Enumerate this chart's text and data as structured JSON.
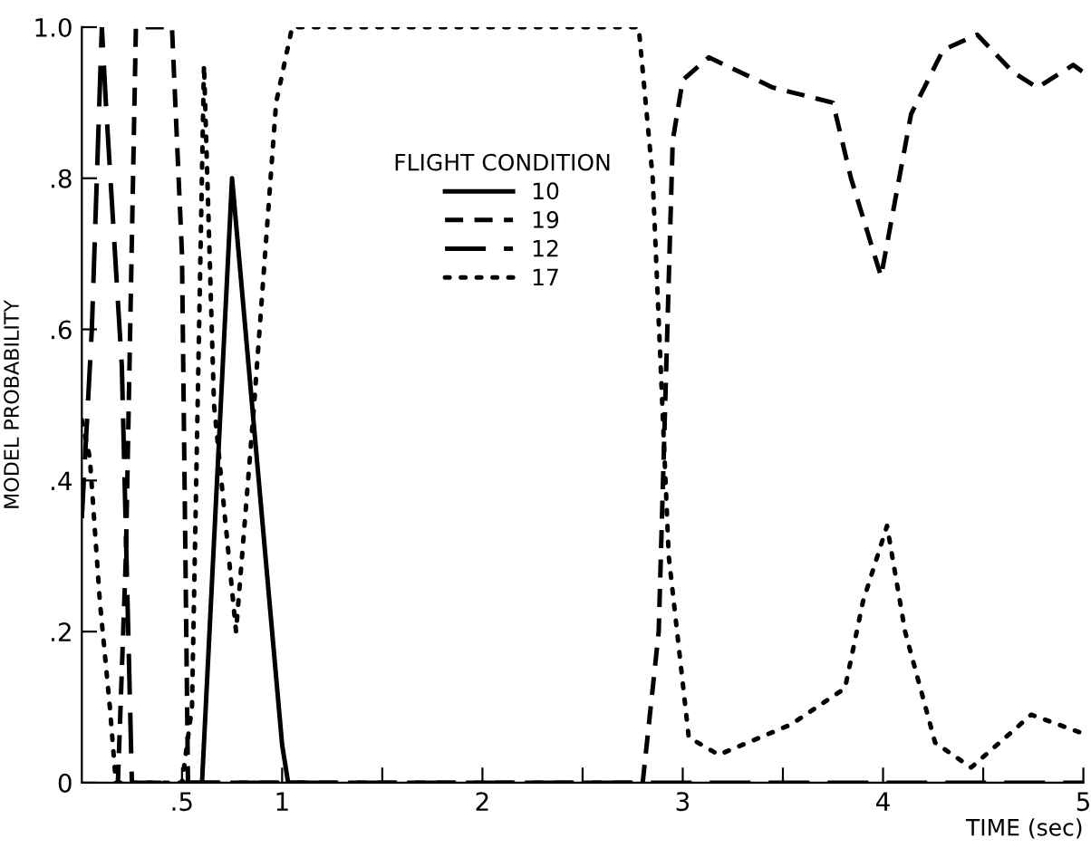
{
  "chart_data": {
    "type": "line",
    "xlabel": "TIME (sec)",
    "ylabel": "MODEL PROBABILITY",
    "legend_title": "FLIGHT CONDITION",
    "legend": "top",
    "grid": false,
    "marker": "none",
    "xlim": [
      0,
      5
    ],
    "ylim": [
      0,
      1
    ],
    "xticks": [
      {
        "value": 0.5,
        "label": ".5"
      },
      1,
      {
        "value": 1.5,
        "label": null
      },
      2,
      {
        "value": 2.5,
        "label": null
      },
      3,
      {
        "value": 3.5,
        "label": null
      },
      4,
      {
        "value": 4.5,
        "label": null
      },
      5
    ],
    "yticks": [
      0,
      {
        "value": 0.2,
        "label": ".2"
      },
      {
        "value": 0.4,
        "label": ".4"
      },
      {
        "value": 0.6,
        "label": ".6"
      },
      {
        "value": 0.8,
        "label": ".8"
      },
      {
        "value": 1,
        "label": "1.0"
      }
    ],
    "series": [
      {
        "name": "10",
        "color": "#000000",
        "line_style": "solid",
        "x": [
          0.55,
          0.6,
          0.75,
          1.0,
          1.03,
          1.1
        ],
        "values": [
          0,
          0,
          0.8,
          0.05,
          0,
          0
        ]
      },
      {
        "name": "19",
        "color": "#000000",
        "line_style": "dashed",
        "x": [
          0.18,
          0.22,
          0.27,
          0.45,
          0.5,
          0.53,
          0.6,
          2.8,
          2.88,
          2.95,
          3.0,
          3.13,
          3.45,
          3.75,
          3.84,
          3.99,
          4.14,
          4.3,
          4.47,
          4.65,
          4.77,
          4.95,
          5.0
        ],
        "values": [
          0,
          0.3,
          1.0,
          1.0,
          0.7,
          0,
          0,
          0,
          0.2,
          0.85,
          0.93,
          0.96,
          0.92,
          0.9,
          0.8,
          0.67,
          0.885,
          0.97,
          0.99,
          0.94,
          0.92,
          0.95,
          0.94
        ]
      },
      {
        "name": "12",
        "color": "#000000",
        "line_style": "long dashed",
        "x": [
          0,
          0.05,
          0.1,
          0.12,
          0.2,
          0.25,
          0.3,
          5.0
        ],
        "values": [
          0.35,
          0.6,
          1.0,
          0.9,
          0.55,
          0,
          0,
          0
        ]
      },
      {
        "name": "17",
        "color": "#000000",
        "line_style": "dotted",
        "x": [
          0,
          0.04,
          0.09,
          0.14,
          0.17,
          0.5,
          0.55,
          0.61,
          0.66,
          0.77,
          0.86,
          0.97,
          1.05,
          2.78,
          2.85,
          2.93,
          3.03,
          3.18,
          3.54,
          3.81,
          3.9,
          4.02,
          4.11,
          4.26,
          4.44,
          4.74,
          5.0
        ],
        "values": [
          0.48,
          0.43,
          0.24,
          0.1,
          0,
          0,
          0.1,
          0.95,
          0.5,
          0.2,
          0.5,
          0.9,
          1.0,
          1.0,
          0.8,
          0.3,
          0.06,
          0.037,
          0.077,
          0.125,
          0.24,
          0.34,
          0.2,
          0.053,
          0.02,
          0.09,
          0.065
        ]
      }
    ]
  }
}
